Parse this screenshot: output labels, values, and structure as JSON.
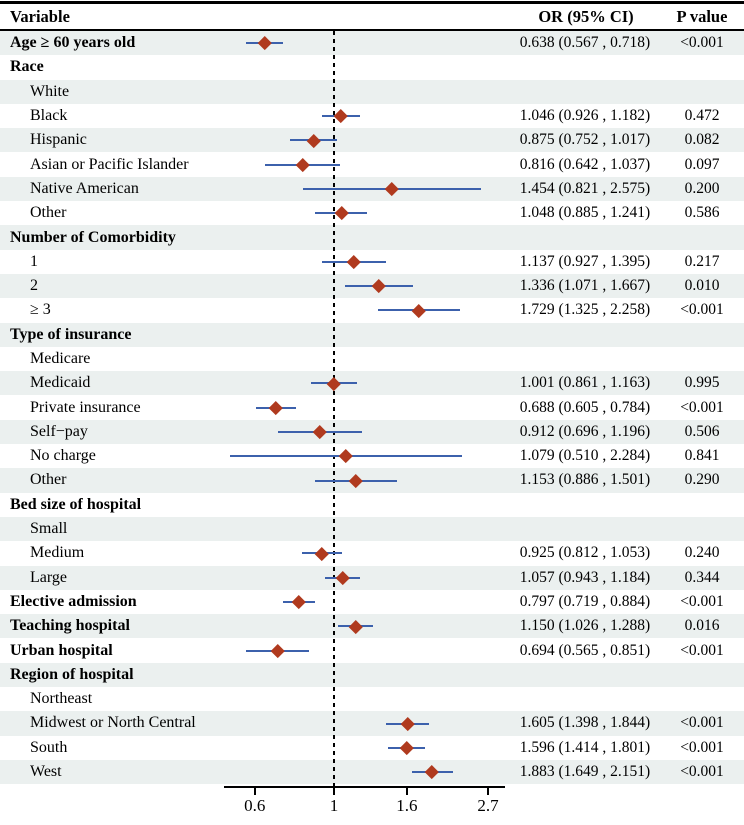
{
  "header": {
    "variable": "Variable",
    "or_ci": "OR (95% CI)",
    "p_value": "P value"
  },
  "colors": {
    "ci_line": "#3c61ac",
    "point": "#b03a1e",
    "stripe": "#ebf0ef",
    "axis": "#000000",
    "text": "#000000"
  },
  "chart_data": {
    "type": "forest",
    "title": "",
    "x_scale": "log",
    "reference_line": 1,
    "x_axis": {
      "ticks": [
        0.6,
        1,
        1.6,
        2.7
      ],
      "tick_labels": [
        "0.6",
        "1",
        "1.6",
        "2.7"
      ],
      "range": [
        0.5,
        3.0
      ]
    },
    "columns": [
      "Variable",
      "OR (95% CI)",
      "P value"
    ],
    "rows": [
      {
        "label": "Age ≥ 60 years old",
        "bold": true,
        "indent": false,
        "or": 0.638,
        "lo": 0.567,
        "hi": 0.718,
        "or_ci": "0.638 (0.567 , 0.718)",
        "p": "<0.001"
      },
      {
        "label": "Race",
        "bold": true,
        "indent": false
      },
      {
        "label": "White",
        "bold": false,
        "indent": true
      },
      {
        "label": "Black",
        "bold": false,
        "indent": true,
        "or": 1.046,
        "lo": 0.926,
        "hi": 1.182,
        "or_ci": "1.046 (0.926 , 1.182)",
        "p": "0.472"
      },
      {
        "label": "Hispanic",
        "bold": false,
        "indent": true,
        "or": 0.875,
        "lo": 0.752,
        "hi": 1.017,
        "or_ci": "0.875 (0.752 , 1.017)",
        "p": "0.082"
      },
      {
        "label": "Asian or Pacific Islander",
        "bold": false,
        "indent": true,
        "or": 0.816,
        "lo": 0.642,
        "hi": 1.037,
        "or_ci": "0.816 (0.642 , 1.037)",
        "p": "0.097"
      },
      {
        "label": "Native American",
        "bold": false,
        "indent": true,
        "or": 1.454,
        "lo": 0.821,
        "hi": 2.575,
        "or_ci": "1.454 (0.821 , 2.575)",
        "p": "0.200"
      },
      {
        "label": "Other",
        "bold": false,
        "indent": true,
        "or": 1.048,
        "lo": 0.885,
        "hi": 1.241,
        "or_ci": "1.048 (0.885 , 1.241)",
        "p": "0.586"
      },
      {
        "label": "Number of Comorbidity",
        "bold": true,
        "indent": false
      },
      {
        "label": "1",
        "bold": false,
        "indent": true,
        "or": 1.137,
        "lo": 0.927,
        "hi": 1.395,
        "or_ci": "1.137 (0.927 , 1.395)",
        "p": "0.217"
      },
      {
        "label": "2",
        "bold": false,
        "indent": true,
        "or": 1.336,
        "lo": 1.071,
        "hi": 1.667,
        "or_ci": "1.336 (1.071 , 1.667)",
        "p": "0.010"
      },
      {
        "label": "≥ 3",
        "bold": false,
        "indent": true,
        "or": 1.729,
        "lo": 1.325,
        "hi": 2.258,
        "or_ci": "1.729 (1.325 , 2.258)",
        "p": "<0.001"
      },
      {
        "label": "Type of insurance",
        "bold": true,
        "indent": false
      },
      {
        "label": "Medicare",
        "bold": false,
        "indent": true
      },
      {
        "label": "Medicaid",
        "bold": false,
        "indent": true,
        "or": 1.001,
        "lo": 0.861,
        "hi": 1.163,
        "or_ci": "1.001 (0.861 , 1.163)",
        "p": "0.995"
      },
      {
        "label": "Private insurance",
        "bold": false,
        "indent": true,
        "or": 0.688,
        "lo": 0.605,
        "hi": 0.784,
        "or_ci": "0.688 (0.605 , 0.784)",
        "p": "<0.001"
      },
      {
        "label": "Self−pay",
        "bold": false,
        "indent": true,
        "or": 0.912,
        "lo": 0.696,
        "hi": 1.196,
        "or_ci": "0.912 (0.696 , 1.196)",
        "p": "0.506"
      },
      {
        "label": "No charge",
        "bold": false,
        "indent": true,
        "or": 1.079,
        "lo": 0.51,
        "hi": 2.284,
        "or_ci": "1.079 (0.510 , 2.284)",
        "p": "0.841"
      },
      {
        "label": "Other",
        "bold": false,
        "indent": true,
        "or": 1.153,
        "lo": 0.886,
        "hi": 1.501,
        "or_ci": "1.153 (0.886 , 1.501)",
        "p": "0.290"
      },
      {
        "label": "Bed size of hospital",
        "bold": true,
        "indent": false
      },
      {
        "label": "Small",
        "bold": false,
        "indent": true
      },
      {
        "label": "Medium",
        "bold": false,
        "indent": true,
        "or": 0.925,
        "lo": 0.812,
        "hi": 1.053,
        "or_ci": "0.925 (0.812 , 1.053)",
        "p": "0.240"
      },
      {
        "label": "Large",
        "bold": false,
        "indent": true,
        "or": 1.057,
        "lo": 0.943,
        "hi": 1.184,
        "or_ci": "1.057 (0.943 , 1.184)",
        "p": "0.344"
      },
      {
        "label": "Elective admission",
        "bold": true,
        "indent": false,
        "or": 0.797,
        "lo": 0.719,
        "hi": 0.884,
        "or_ci": "0.797 (0.719 , 0.884)",
        "p": "<0.001"
      },
      {
        "label": "Teaching hospital",
        "bold": true,
        "indent": false,
        "or": 1.15,
        "lo": 1.026,
        "hi": 1.288,
        "or_ci": "1.150 (1.026 , 1.288)",
        "p": "0.016"
      },
      {
        "label": "Urban hospital",
        "bold": true,
        "indent": false,
        "or": 0.694,
        "lo": 0.565,
        "hi": 0.851,
        "or_ci": "0.694 (0.565 , 0.851)",
        "p": "<0.001"
      },
      {
        "label": "Region of hospital",
        "bold": true,
        "indent": false
      },
      {
        "label": "Northeast",
        "bold": false,
        "indent": true
      },
      {
        "label": "Midwest or North Central",
        "bold": false,
        "indent": true,
        "or": 1.605,
        "lo": 1.398,
        "hi": 1.844,
        "or_ci": "1.605 (1.398 , 1.844)",
        "p": "<0.001"
      },
      {
        "label": "South",
        "bold": false,
        "indent": true,
        "or": 1.596,
        "lo": 1.414,
        "hi": 1.801,
        "or_ci": "1.596 (1.414 , 1.801)",
        "p": "<0.001"
      },
      {
        "label": "West",
        "bold": false,
        "indent": true,
        "or": 1.883,
        "lo": 1.649,
        "hi": 2.151,
        "or_ci": "1.883 (1.649 , 2.151)",
        "p": "<0.001"
      }
    ]
  }
}
